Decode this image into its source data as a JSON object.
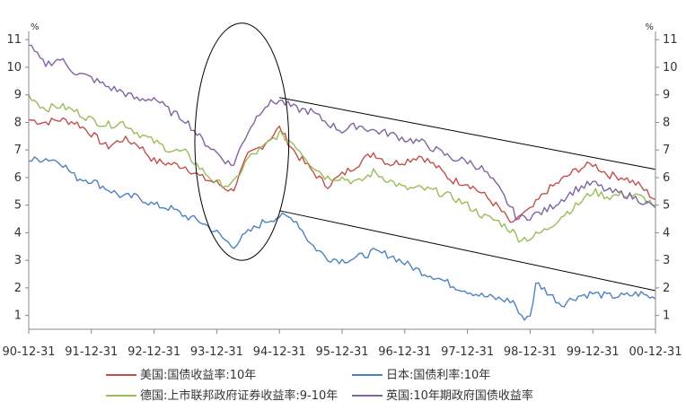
{
  "chart_data": {
    "type": "line",
    "title": "",
    "xlabel": "",
    "ylabel_left": "%",
    "ylabel_right": "%",
    "ylim": [
      0.5,
      11.3
    ],
    "yticks": [
      1,
      2,
      3,
      4,
      5,
      6,
      7,
      8,
      9,
      10,
      11
    ],
    "x_categories": [
      "90-12-31",
      "91-12-31",
      "92-12-31",
      "93-12-31",
      "94-12-31",
      "95-12-31",
      "96-12-31",
      "97-12-31",
      "98-12-31",
      "99-12-31",
      "00-12-31"
    ],
    "grid": false,
    "legend_position": "bottom",
    "colors": {
      "us": "#c0504d",
      "jp": "#4f81bd",
      "de": "#9bbb59",
      "uk": "#8064a2",
      "trend": "#000000"
    },
    "series": [
      {
        "key": "us",
        "name": "美国:国债收益率:10年",
        "x": [
          0,
          0.25,
          0.5,
          0.75,
          1.0,
          1.25,
          1.5,
          1.75,
          2.0,
          2.25,
          2.5,
          2.75,
          3.0,
          3.25,
          3.5,
          3.75,
          4.0,
          4.25,
          4.5,
          4.75,
          5.0,
          5.25,
          5.5,
          5.75,
          6.0,
          6.25,
          6.5,
          6.75,
          7.0,
          7.25,
          7.5,
          7.75,
          7.8,
          8.0,
          8.25,
          8.5,
          8.75,
          9.0,
          9.25,
          9.5,
          9.75,
          10.0
        ],
        "values": [
          8.1,
          8.0,
          8.1,
          8.0,
          7.6,
          7.1,
          7.4,
          7.2,
          6.6,
          6.5,
          6.4,
          6.0,
          5.8,
          5.5,
          6.8,
          7.2,
          7.8,
          6.9,
          6.3,
          5.7,
          6.1,
          6.5,
          6.9,
          6.5,
          6.6,
          6.8,
          6.4,
          5.9,
          5.8,
          5.4,
          4.9,
          4.2,
          4.6,
          4.8,
          5.5,
          5.9,
          6.3,
          6.5,
          6.1,
          6.0,
          5.7,
          5.2
        ]
      },
      {
        "key": "jp",
        "name": "日本:国债利率:10年",
        "x": [
          0,
          0.25,
          0.5,
          0.75,
          1.0,
          1.25,
          1.5,
          1.75,
          2.0,
          2.25,
          2.5,
          2.75,
          3.0,
          3.25,
          3.5,
          3.75,
          4.0,
          4.25,
          4.5,
          4.75,
          5.0,
          5.25,
          5.5,
          5.75,
          6.0,
          6.25,
          6.5,
          6.75,
          7.0,
          7.25,
          7.5,
          7.75,
          7.85,
          8.0,
          8.1,
          8.25,
          8.5,
          8.75,
          9.0,
          9.25,
          9.5,
          9.75,
          10.0
        ],
        "values": [
          6.6,
          6.7,
          6.6,
          6.0,
          5.9,
          5.6,
          5.3,
          5.3,
          5.0,
          4.9,
          4.6,
          4.4,
          4.0,
          3.5,
          4.0,
          4.4,
          4.6,
          4.5,
          3.6,
          3.1,
          3.0,
          3.1,
          3.3,
          3.2,
          2.9,
          2.6,
          2.4,
          2.1,
          1.9,
          1.7,
          1.6,
          1.5,
          0.9,
          1.0,
          2.2,
          1.9,
          1.4,
          1.7,
          1.8,
          1.7,
          1.7,
          1.8,
          1.6
        ]
      },
      {
        "key": "de",
        "name": "德国:上市联邦政府证券收益率:9-10年",
        "x": [
          0,
          0.25,
          0.5,
          0.75,
          1.0,
          1.25,
          1.5,
          1.75,
          2.0,
          2.25,
          2.5,
          2.75,
          3.0,
          3.25,
          3.5,
          3.75,
          4.0,
          4.25,
          4.5,
          4.75,
          5.0,
          5.25,
          5.5,
          5.75,
          6.0,
          6.25,
          6.5,
          6.75,
          7.0,
          7.25,
          7.5,
          7.75,
          7.8,
          8.0,
          8.25,
          8.5,
          8.75,
          9.0,
          9.25,
          9.5,
          9.75,
          10.0
        ],
        "values": [
          9.0,
          8.5,
          8.6,
          8.4,
          8.1,
          7.9,
          8.0,
          7.6,
          7.3,
          7.0,
          6.9,
          6.3,
          5.8,
          5.7,
          6.7,
          7.1,
          7.6,
          7.2,
          6.5,
          6.0,
          6.0,
          5.8,
          6.2,
          5.9,
          5.6,
          5.6,
          5.5,
          5.3,
          5.0,
          4.6,
          4.4,
          4.0,
          3.8,
          3.8,
          4.1,
          4.6,
          5.0,
          5.5,
          5.3,
          5.4,
          5.3,
          5.0
        ]
      },
      {
        "key": "uk",
        "name": "英国:10年期政府国债收益率",
        "x": [
          0,
          0.25,
          0.5,
          0.75,
          1.0,
          1.25,
          1.5,
          1.75,
          2.0,
          2.25,
          2.5,
          2.75,
          3.0,
          3.25,
          3.5,
          3.75,
          4.0,
          4.25,
          4.5,
          4.75,
          5.0,
          5.25,
          5.5,
          5.75,
          6.0,
          6.25,
          6.5,
          6.75,
          7.0,
          7.25,
          7.5,
          7.75,
          7.8,
          8.0,
          8.25,
          8.5,
          8.75,
          9.0,
          9.25,
          9.5,
          9.75,
          10.0
        ],
        "values": [
          10.8,
          10.1,
          10.3,
          9.8,
          9.6,
          9.3,
          9.1,
          8.8,
          8.9,
          8.4,
          8.1,
          7.4,
          6.9,
          6.4,
          7.7,
          8.6,
          8.8,
          8.5,
          8.4,
          8.0,
          7.7,
          7.9,
          7.7,
          7.6,
          7.4,
          7.3,
          7.0,
          6.7,
          6.6,
          6.3,
          5.6,
          4.7,
          4.5,
          4.6,
          4.8,
          5.2,
          5.6,
          5.8,
          5.5,
          5.4,
          5.2,
          4.9
        ]
      }
    ],
    "annotations": {
      "trend_lines": [
        {
          "x": [
            4.0,
            10.0
          ],
          "values": [
            8.9,
            6.3
          ]
        },
        {
          "x": [
            4.0,
            10.0
          ],
          "values": [
            4.8,
            1.9
          ]
        }
      ],
      "ellipse": {
        "x_center": 3.4,
        "y_center": 7.3,
        "x_radius": 0.75,
        "y_radius": 4.3
      }
    }
  }
}
